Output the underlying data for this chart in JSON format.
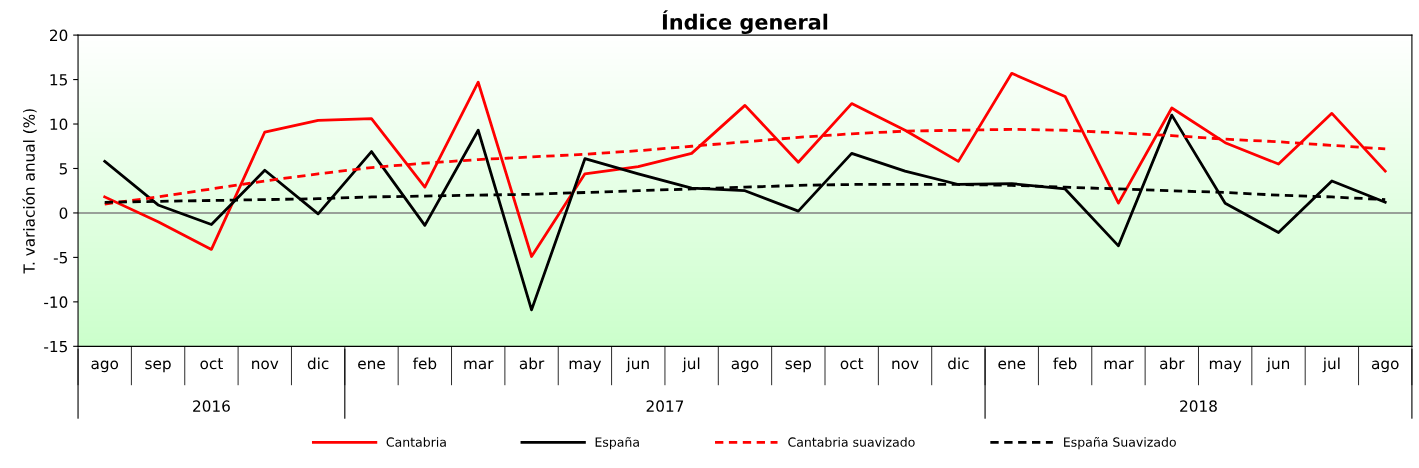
{
  "chart_data": {
    "type": "line",
    "title": "Índice general",
    "ylabel": "T. variación anual (%)",
    "categories": [
      "ago",
      "sep",
      "oct",
      "nov",
      "dic",
      "ene",
      "feb",
      "mar",
      "abr",
      "may",
      "jun",
      "jul",
      "ago",
      "sep",
      "oct",
      "nov",
      "dic",
      "ene",
      "feb",
      "mar",
      "abr",
      "may",
      "jun",
      "jul",
      "ago"
    ],
    "series": [
      {
        "name": "Cantabria",
        "color": "#ff0000",
        "line_style": "solid",
        "values": [
          1.8,
          -1.0,
          -4.1,
          9.1,
          10.4,
          10.6,
          2.9,
          14.7,
          -4.9,
          4.4,
          5.2,
          6.7,
          12.1,
          5.7,
          12.3,
          9.3,
          5.8,
          15.7,
          13.1,
          1.1,
          11.8,
          7.9,
          5.5,
          11.2,
          4.7
        ]
      },
      {
        "name": "España",
        "color": "#000000",
        "line_style": "solid",
        "values": [
          5.8,
          0.9,
          -1.3,
          4.8,
          -0.1,
          6.9,
          -1.4,
          9.3,
          -10.9,
          6.1,
          4.4,
          2.8,
          2.5,
          0.2,
          6.7,
          4.7,
          3.2,
          3.3,
          2.7,
          -3.7,
          11.0,
          1.1,
          -2.2,
          3.6,
          1.2
        ]
      },
      {
        "name": "Cantabria suavizado",
        "color": "#ff0000",
        "line_style": "dashed",
        "values": [
          1.0,
          1.8,
          2.7,
          3.6,
          4.4,
          5.1,
          5.6,
          6.0,
          6.3,
          6.6,
          7.0,
          7.5,
          8.0,
          8.5,
          8.9,
          9.2,
          9.3,
          9.4,
          9.3,
          9.0,
          8.7,
          8.3,
          8.0,
          7.6,
          7.2
        ]
      },
      {
        "name": "España Suavizado",
        "color": "#000000",
        "line_style": "dashed",
        "values": [
          1.2,
          1.3,
          1.4,
          1.5,
          1.6,
          1.8,
          1.9,
          2.0,
          2.1,
          2.3,
          2.5,
          2.7,
          2.9,
          3.1,
          3.2,
          3.2,
          3.2,
          3.1,
          2.9,
          2.7,
          2.5,
          2.3,
          2.0,
          1.8,
          1.5
        ]
      }
    ],
    "annotations": [
      "2016",
      "2017",
      "2018"
    ],
    "ylim": [
      -15,
      20
    ],
    "yticks": [
      -15,
      -10,
      -5,
      0,
      5,
      10,
      15,
      20
    ],
    "ref_lines": [
      {
        "axis": "y",
        "value": 0,
        "color": "#808080",
        "line_style": "solid"
      }
    ],
    "grid": false,
    "legend": "bottom",
    "marker": "none"
  }
}
